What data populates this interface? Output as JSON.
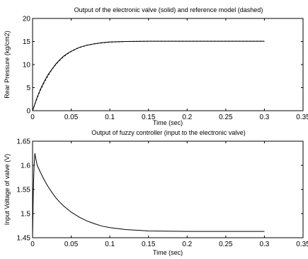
{
  "chart_data": [
    {
      "type": "line",
      "title": "Output of the electronic valve (solid) and reference model (dashed)",
      "xlabel": "Time (sec)",
      "ylabel": "Rear Pressure (kg/cm2)",
      "xlim": [
        0,
        0.35
      ],
      "ylim": [
        0,
        20
      ],
      "xticks": [
        "0",
        "0.05",
        "0.1",
        "0.15",
        "0.2",
        "0.25",
        "0.3",
        "0.35"
      ],
      "yticks": [
        "0",
        "5",
        "10",
        "15",
        "20"
      ],
      "grid": false,
      "series": [
        {
          "style": "solid",
          "color": "#000000",
          "x": [
            0,
            0.005,
            0.01,
            0.015,
            0.02,
            0.025,
            0.03,
            0.035,
            0.04,
            0.045,
            0.05,
            0.06,
            0.07,
            0.08,
            0.09,
            0.1,
            0.12,
            0.15,
            0.2,
            0.25,
            0.3
          ],
          "y": [
            0,
            2.5,
            4.6,
            6.3,
            7.8,
            9.0,
            10.1,
            11.0,
            11.8,
            12.4,
            12.9,
            13.7,
            14.2,
            14.5,
            14.75,
            14.9,
            15.0,
            15.05,
            15.05,
            15.05,
            15.05
          ]
        },
        {
          "style": "dashed",
          "color": "#000000",
          "x": [
            0,
            0.005,
            0.01,
            0.015,
            0.02,
            0.025,
            0.03,
            0.035,
            0.04,
            0.045,
            0.05,
            0.06,
            0.07,
            0.08,
            0.09,
            0.1,
            0.12,
            0.15,
            0.2,
            0.25,
            0.3
          ],
          "y": [
            0,
            2.3,
            4.4,
            6.1,
            7.6,
            8.9,
            10.0,
            10.9,
            11.7,
            12.3,
            12.85,
            13.65,
            14.15,
            14.5,
            14.7,
            14.85,
            15.0,
            15.05,
            15.05,
            15.05,
            15.05
          ]
        }
      ]
    },
    {
      "type": "line",
      "title": "Output of fuzzy controller (input to the electronic valve)",
      "xlabel": "Time (sec)",
      "ylabel": "Input Voltage of valve (V)",
      "xlim": [
        0,
        0.35
      ],
      "ylim": [
        1.45,
        1.65
      ],
      "xticks": [
        "0",
        "0.05",
        "0.1",
        "0.15",
        "0.2",
        "0.25",
        "0.3",
        "0.35"
      ],
      "yticks": [
        "1.45",
        "1.5",
        "1.55",
        "1.6",
        "1.65"
      ],
      "grid": false,
      "series": [
        {
          "style": "solid",
          "color": "#000000",
          "x": [
            0,
            0.001,
            0.002,
            0.003,
            0.004,
            0.006,
            0.008,
            0.01,
            0.015,
            0.02,
            0.025,
            0.03,
            0.035,
            0.04,
            0.05,
            0.06,
            0.07,
            0.08,
            0.09,
            0.1,
            0.11,
            0.115,
            0.12,
            0.13,
            0.14,
            0.15,
            0.2,
            0.25,
            0.3
          ],
          "y": [
            1.45,
            1.55,
            1.6,
            1.625,
            1.615,
            1.6,
            1.593,
            1.586,
            1.57,
            1.556,
            1.544,
            1.533,
            1.524,
            1.516,
            1.503,
            1.493,
            1.485,
            1.479,
            1.474,
            1.471,
            1.469,
            1.468,
            1.467,
            1.466,
            1.465,
            1.464,
            1.463,
            1.463,
            1.463
          ]
        }
      ]
    }
  ]
}
